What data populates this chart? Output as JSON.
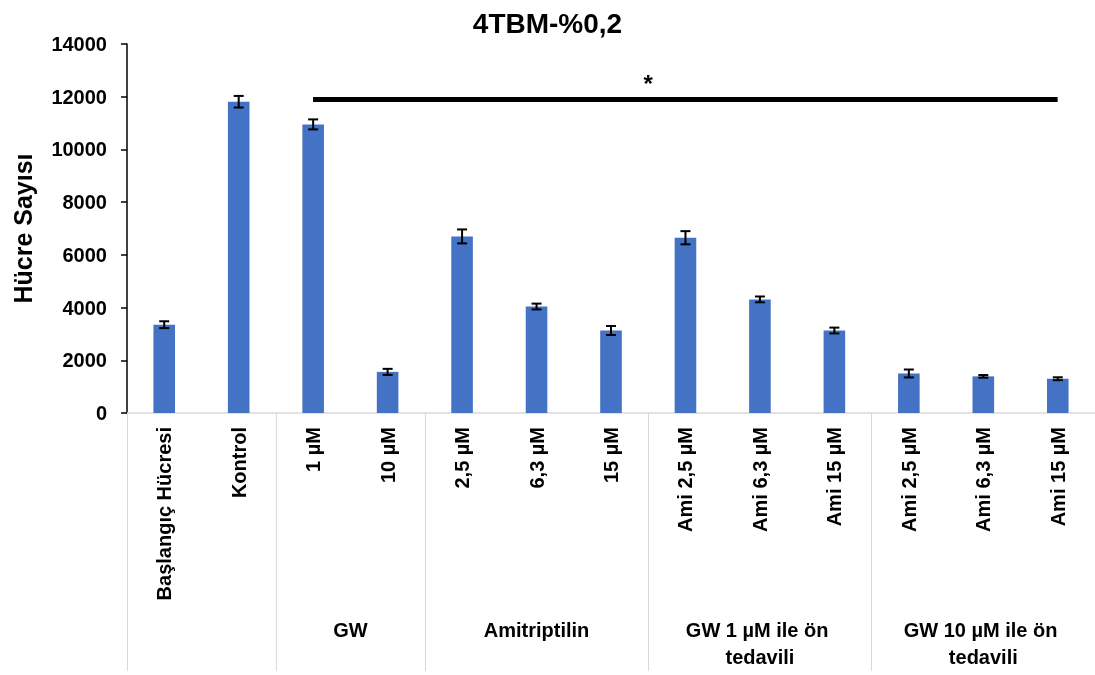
{
  "chart_data": {
    "type": "bar",
    "title": "4TBM-%0,2",
    "ylabel": "Hücre Sayısı",
    "categories": [
      "Başlangıç Hücresi",
      "Kontrol",
      "1 µM",
      "10 µM",
      "2,5 µM",
      "6,3 µM",
      "15 µM",
      "Ami 2,5 µM",
      "Ami 6,3 µM",
      "Ami 15 µM",
      "Ami 2,5 µM",
      "Ami 6,3 µM",
      "Ami 15 µM"
    ],
    "values": [
      3350,
      11810,
      10950,
      1560,
      6700,
      4040,
      3130,
      6650,
      4310,
      3130,
      1500,
      1390,
      1300
    ],
    "errors": [
      130,
      220,
      190,
      115,
      265,
      110,
      170,
      250,
      110,
      110,
      150,
      50,
      55
    ],
    "color": "#4472c4",
    "ylim": [
      0,
      14000
    ],
    "yticks": [
      0,
      2000,
      4000,
      6000,
      8000,
      10000,
      12000,
      14000
    ],
    "grid": false,
    "annotations": [
      "*",
      "GW",
      "Amitriptilin",
      "GW 1 µM ile ön tedavili",
      "GW 10 µM ile ön tedavili"
    ]
  }
}
